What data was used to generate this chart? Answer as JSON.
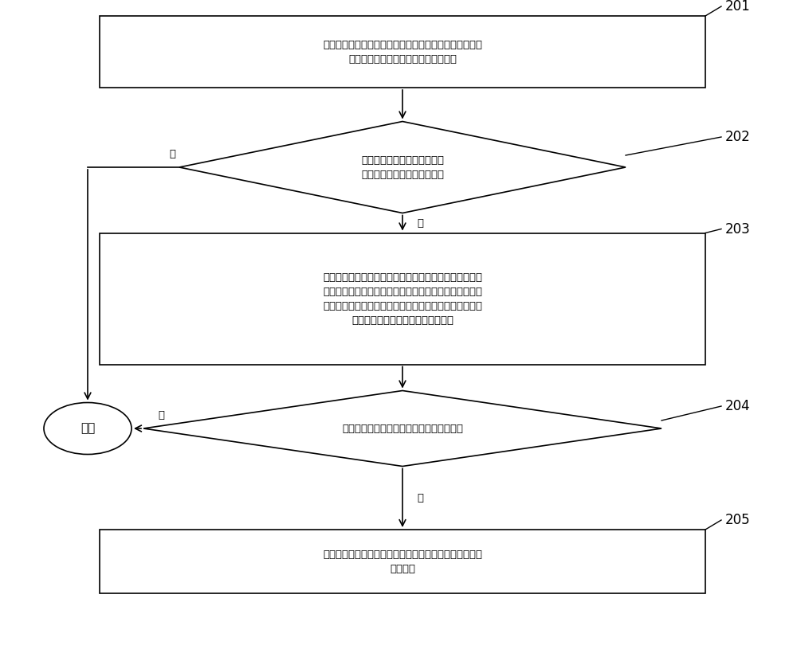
{
  "bg_color": "#ffffff",
  "box_color": "#ffffff",
  "box_edge_color": "#000000",
  "text_color": "#000000",
  "arrow_color": "#000000",
  "step_numbers": [
    "201",
    "202",
    "203",
    "204",
    "205"
  ],
  "box1_text": "在穿戴设备的电池处于非充电状态下，穿戴设备检测正极\n充电点与负极充电点之间的当前电流値",
  "diamond2_text": "穿戴设备判断当前电流値是否\n处于预设的正常电流値范围内",
  "box3_text": "穿戴设备发出提醒信息以用于提醒正极充电点、负极充电\n点与充电检测电路之间形成短路，以及触发内置于该穿戴\n设备的马达产生振动以带动穿戴设备振动，以及启动计时\n器并开始计时以获得短路的持续时长",
  "diamond4_text": "穿戴设备判断该持续时长是否大于预设时长",
  "box5_text": "穿戴设备断开正极充电点、负极充电点与充电检测电路之\n间的连接",
  "end_text": "结束",
  "yes_label": "是",
  "no_label": "否"
}
